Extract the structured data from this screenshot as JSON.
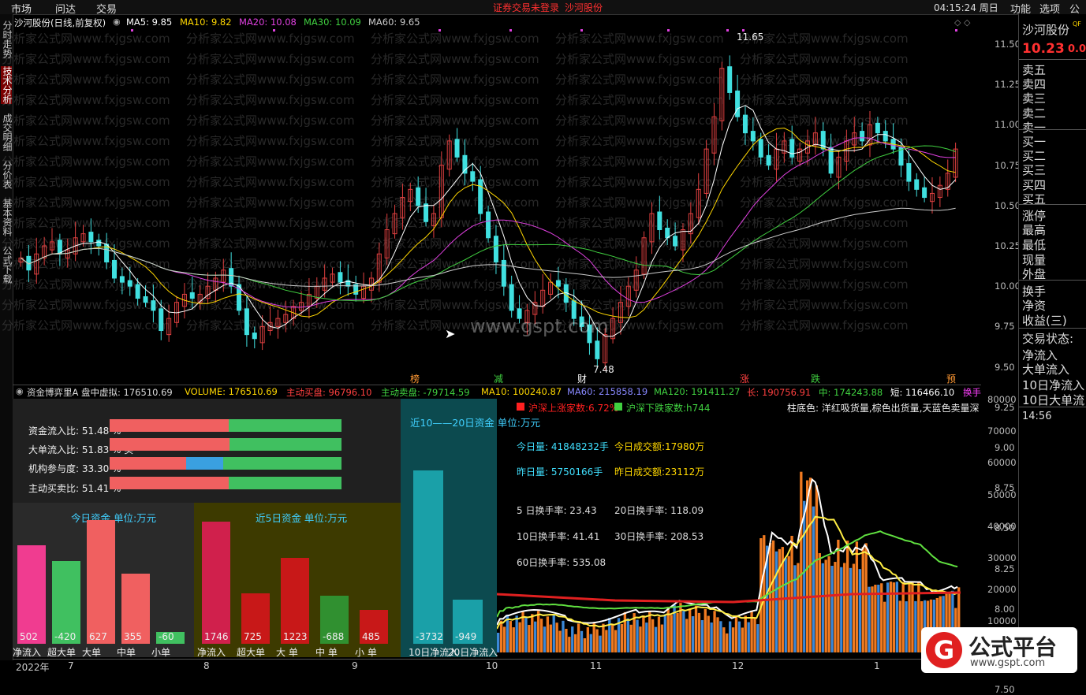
{
  "menu": {
    "items": [
      "市场",
      "问达",
      "交易"
    ],
    "login_status": "证券交易未登录",
    "stock": "沙河股份",
    "clock": "04:15:24 周日",
    "right_items": [
      "功能",
      "选项",
      "公"
    ]
  },
  "left_tabs": [
    "分时走势",
    "技术分析",
    "成交明细",
    "分价表",
    "基本资料",
    "公式下载"
  ],
  "chart": {
    "title": "沙河股份(日线,前复权)",
    "ma": [
      {
        "label": "MA5: 9.85",
        "color": "#ffffff"
      },
      {
        "label": "MA10: 9.82",
        "color": "#ffd700"
      },
      {
        "label": "MA20: 10.08",
        "color": "#e040e0"
      },
      {
        "label": "MA30: 10.09",
        "color": "#40d040"
      },
      {
        "label": "MA60: 9.65",
        "color": "#cccccc"
      }
    ],
    "high_label": "11.65",
    "low_label": "7.48",
    "price_axis": [
      "11.50",
      "11.25",
      "11.00",
      "10.75",
      "10.50",
      "10.25",
      "10.00",
      "9.75",
      "9.50",
      "9.25",
      "9.00",
      "8.75",
      "8.50",
      "8.25",
      "8.00",
      "7.75",
      "7.50"
    ],
    "events": [
      {
        "text": "榜",
        "color": "#ff9933"
      },
      {
        "text": "减",
        "color": "#40d040"
      },
      {
        "text": "财",
        "color": "#ffffff"
      },
      {
        "text": "涨",
        "color": "#ff4040"
      },
      {
        "text": "跌",
        "color": "#40d040"
      },
      {
        "text": "预",
        "color": "#ff9933"
      }
    ],
    "watermark": "分析家公式网www.fxjgsw.com",
    "center_watermark": "www.gspt.com",
    "price_data": [
      8.85,
      8.7,
      8.9,
      9.0,
      9.05,
      8.9,
      8.95,
      9.1,
      9.15,
      9.05,
      9.0,
      8.8,
      8.6,
      8.55,
      8.5,
      8.35,
      8.3,
      8.2,
      7.95,
      8.1,
      8.3,
      8.4,
      8.35,
      8.4,
      8.5,
      8.6,
      8.7,
      8.5,
      8.2,
      7.9,
      7.85,
      8.0,
      8.05,
      8.1,
      8.15,
      8.25,
      8.3,
      8.4,
      8.5,
      8.6,
      8.65,
      8.55,
      8.5,
      8.4,
      8.5,
      8.6,
      8.9,
      9.2,
      9.4,
      9.6,
      9.7,
      9.5,
      9.3,
      9.4,
      10.0,
      10.3,
      10.1,
      9.9,
      9.8,
      9.4,
      9.1,
      8.8,
      8.5,
      8.2,
      8.1,
      8.2,
      8.3,
      8.45,
      8.55,
      8.5,
      8.3,
      8.1,
      8.0,
      7.8,
      7.6,
      7.9,
      8.1,
      8.3,
      8.5,
      8.7,
      9.1,
      9.4,
      9.2,
      9.1,
      9.0,
      9.2,
      9.4,
      9.7,
      10.2,
      10.6,
      11.2,
      10.9,
      10.6,
      10.4,
      10.3,
      10.1,
      10.0,
      10.2,
      10.3,
      10.1,
      10.2,
      10.3,
      10.4,
      10.2,
      9.9,
      10.1,
      10.3,
      10.4,
      10.3,
      10.5,
      10.4,
      10.3,
      10.2,
      10.0,
      9.8,
      9.7,
      9.6,
      9.65,
      9.75,
      9.9,
      10.2
    ]
  },
  "indicator": {
    "legend": [
      {
        "label": "资金博弈里A 盘中虚拟: 176510.69",
        "color": "#dddddd"
      },
      {
        "label": "VOLUME: 176510.69",
        "color": "#ffd700"
      },
      {
        "label": "主动买盘: 96796.10",
        "color": "#ff4040"
      },
      {
        "label": "主动卖盘: -79714.59",
        "color": "#40d040"
      },
      {
        "label": "MA10: 100240.87",
        "color": "#ffd700"
      },
      {
        "label": "MA60: 215858.19",
        "color": "#8888ff"
      },
      {
        "label": "MA120: 191411.27",
        "color": "#40d040"
      },
      {
        "label": "长: 190756.91",
        "color": "#ff4040"
      },
      {
        "label": "中: 174243.88",
        "color": "#40d040"
      },
      {
        "label": "短: 116466.10",
        "color": "#ffffff"
      },
      {
        "label": "换手",
        "color": "#ff40ff"
      }
    ],
    "vol_axis": [
      "80000",
      "70000",
      "60000",
      "50000",
      "40000",
      "30000",
      "20000",
      "10000"
    ],
    "ratios": [
      {
        "label": "资金流入比: 51.48 %",
        "value": 51.48
      },
      {
        "label": "大单流入比: 51.83 % 买",
        "value": 51.83
      },
      {
        "label": "机构参与度: 33.30 %",
        "value": 33.3
      },
      {
        "label": "主动买卖比: 51.41 %",
        "value": 51.41
      }
    ],
    "today_title": "今日资金 单位:万元",
    "today_bars": [
      {
        "name": "净流入",
        "value": 502,
        "label": "502"
      },
      {
        "name": "超大单",
        "value": -420,
        "label": "-420"
      },
      {
        "name": "大单",
        "value": 627,
        "label": "627"
      },
      {
        "name": "中单",
        "value": 355,
        "label": "355"
      },
      {
        "name": "小单",
        "value": -60,
        "label": "-60"
      }
    ],
    "five_title": "近5日资金 单位:万元",
    "five_bars": [
      {
        "name": "净流入",
        "value": 1746,
        "label": "1746"
      },
      {
        "name": "超大单",
        "value": 725,
        "label": "725"
      },
      {
        "name": "大 单",
        "value": 1223,
        "label": "1223"
      },
      {
        "name": "中 单",
        "value": -688,
        "label": "-688"
      },
      {
        "name": "小 单",
        "value": 485,
        "label": "485"
      }
    ],
    "ten_title": "近10——20日资金 单位:万元",
    "ten_bars": [
      {
        "name": "10日净流入",
        "value": -3732,
        "label": "-3732"
      },
      {
        "name": "20日净流入",
        "value": -949,
        "label": "-949"
      }
    ],
    "index_legend": [
      {
        "label": "沪深上涨家数:6.72%",
        "color": "#ff2020"
      },
      {
        "label": "沪深下跌家数:h744",
        "color": "#40d040"
      }
    ],
    "note": "柱底色: 洋红吸货量,棕色出货量,天蓝色卖量深",
    "stats": [
      {
        "label": "今日量: 41848232手",
        "color": "#40e0ff"
      },
      {
        "label": "今日成交额:17980万",
        "color": "#ffd700"
      },
      {
        "label": "昨日量: 5750166手",
        "color": "#40e0ff"
      },
      {
        "label": "昨日成交额:23112万",
        "color": "#ffd700"
      },
      {
        "label": "5 日换手率: 23.43",
        "color": "#dddddd"
      },
      {
        "label": "20日换手率: 118.09",
        "color": "#dddddd"
      },
      {
        "label": "10日换手率: 41.41",
        "color": "#dddddd"
      },
      {
        "label": "30日换手率: 208.53",
        "color": "#dddddd"
      },
      {
        "label": "60日换手率: 535.08",
        "color": "#dddddd"
      }
    ]
  },
  "x_axis": [
    "2022年",
    "7",
    "8",
    "9",
    "10",
    "11",
    "12",
    "1"
  ],
  "quote": {
    "name": "沙河股份",
    "badge": "QF",
    "price": "10.23",
    "change": "0.0",
    "book": [
      "卖五",
      "卖四",
      "卖三",
      "卖二",
      "卖一",
      "买一",
      "买二",
      "买三",
      "买四",
      "买五"
    ],
    "fields": [
      "涨停",
      "最高",
      "最低",
      "现量",
      "外盘",
      "换手",
      "净资",
      "收益(三)",
      "交易状态:",
      "净流入",
      "大单流入",
      "10日净流入",
      "10日大单流"
    ],
    "time": "14:56"
  },
  "brand": {
    "name": "公式平台",
    "url": "www.gspt.com",
    "letter": "G"
  }
}
